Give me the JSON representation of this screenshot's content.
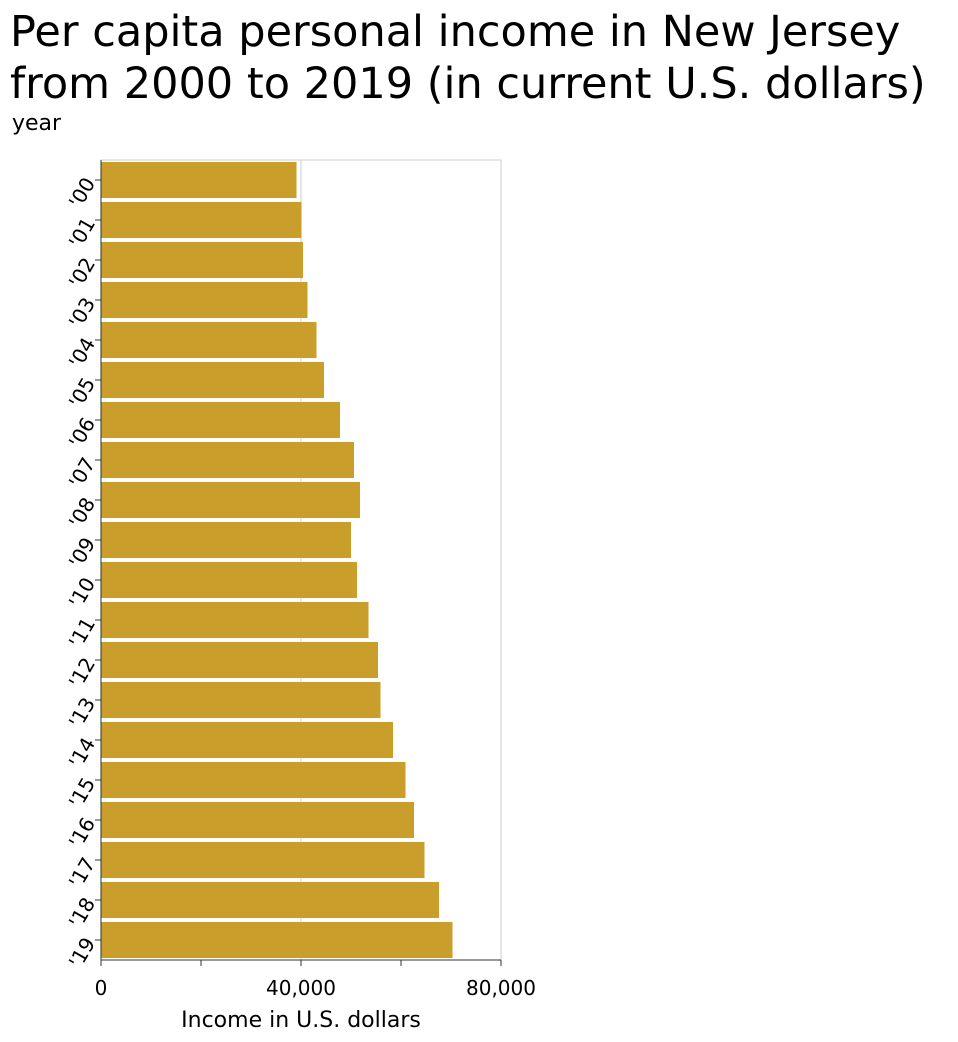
{
  "title_line1": "Per capita personal income in New Jersey",
  "title_line2": "from 2000 to 2019 (in current U.S. dollars)",
  "chart_data": {
    "type": "bar",
    "orientation": "horizontal",
    "title": "Per capita personal income in New Jersey from 2000 to 2019 (in current U.S. dollars)",
    "xlabel": "Income in U.S. dollars",
    "ylabel": "year",
    "xlim": [
      0,
      80000
    ],
    "xticks": [
      0,
      40000,
      80000
    ],
    "xtick_labels": [
      "0",
      "40,000",
      "80,000"
    ],
    "categories": [
      "'00",
      "'01",
      "'02",
      "'03",
      "'04",
      "'05",
      "'06",
      "'07",
      "'08",
      "'09",
      "'10",
      "'11",
      "'12",
      "'13",
      "'14",
      "'15",
      "'16",
      "'17",
      "'18",
      "'19"
    ],
    "values": [
      39100,
      40100,
      40400,
      41300,
      43100,
      44600,
      47800,
      50600,
      51800,
      50000,
      51200,
      53500,
      55400,
      55900,
      58400,
      60900,
      62600,
      64700,
      67600,
      70300
    ],
    "bar_color": "#c99e2b",
    "grid": "vertical",
    "legend": "none"
  }
}
